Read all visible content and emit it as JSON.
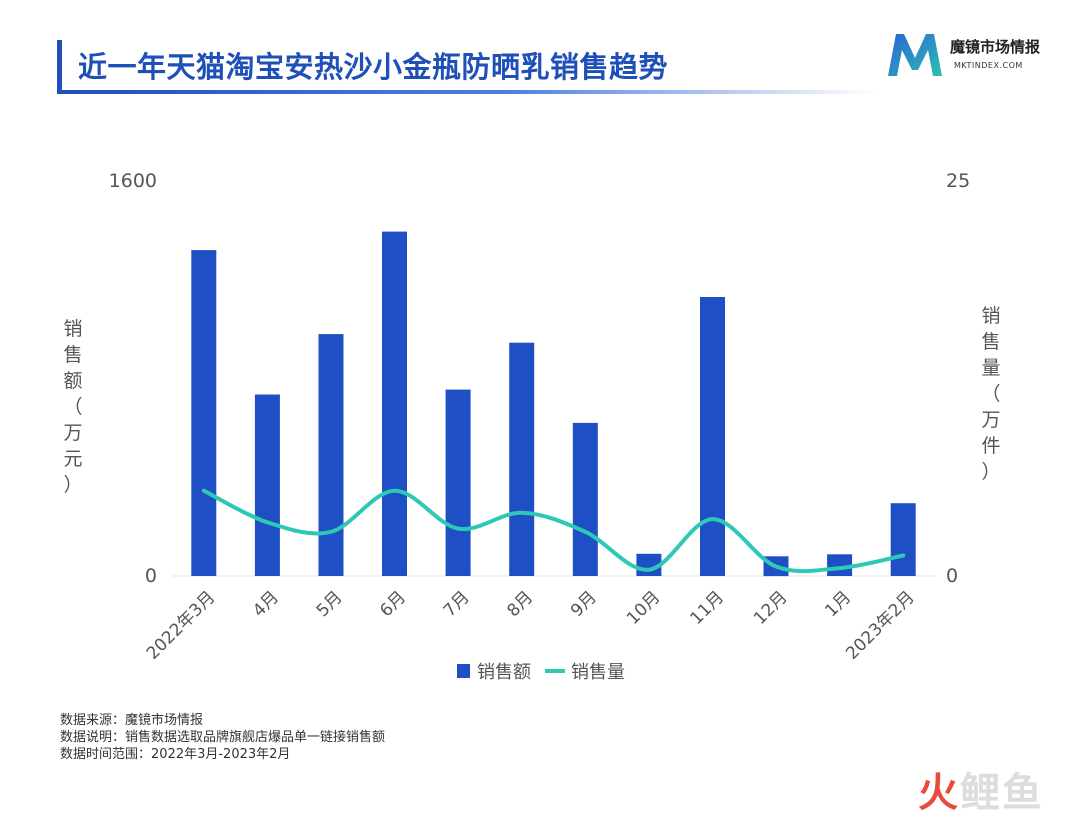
{
  "title": "近一年天猫淘宝安热沙小金瓶防晒乳销售趋势",
  "logo": {
    "name": "魔镜市场情报",
    "sub": "MKTINDEX.COM",
    "colors": [
      "#2b63d6",
      "#2bbfb0"
    ]
  },
  "chart_data": {
    "type": "bar",
    "categories": [
      "2022年3月",
      "4月",
      "5月",
      "6月",
      "7月",
      "8月",
      "9月",
      "10月",
      "11月",
      "12月",
      "1月",
      "2023年2月"
    ],
    "series": [
      {
        "name": "销售额",
        "type": "bar",
        "axis": "left",
        "color": "#1f4fc4",
        "values": [
          1320,
          735,
          980,
          1395,
          755,
          945,
          620,
          90,
          1130,
          80,
          88,
          295
        ]
      },
      {
        "name": "销售量",
        "type": "line",
        "axis": "right",
        "color": "#2ec9b4",
        "values": [
          5.4,
          3.4,
          2.8,
          5.4,
          3.0,
          4.0,
          2.8,
          0.4,
          3.6,
          0.6,
          0.5,
          1.3
        ]
      }
    ],
    "y_left": {
      "label": "销售额（万元）",
      "range": [
        0,
        1600
      ],
      "ticks": [
        "0",
        "1600"
      ]
    },
    "y_right": {
      "label": "销售量（万件）",
      "range": [
        0,
        25
      ],
      "ticks": [
        "0",
        "25"
      ]
    },
    "grid": false,
    "legend": "bottom-center"
  },
  "footer": {
    "source": "数据来源：魔镜市场情报",
    "note": "数据说明：销售数据选取品牌旗舰店爆品单一链接销售额",
    "range": "数据时间范围：2022年3月-2023年2月"
  },
  "watermark": {
    "fire": "火",
    "rest": "鲤鱼"
  }
}
